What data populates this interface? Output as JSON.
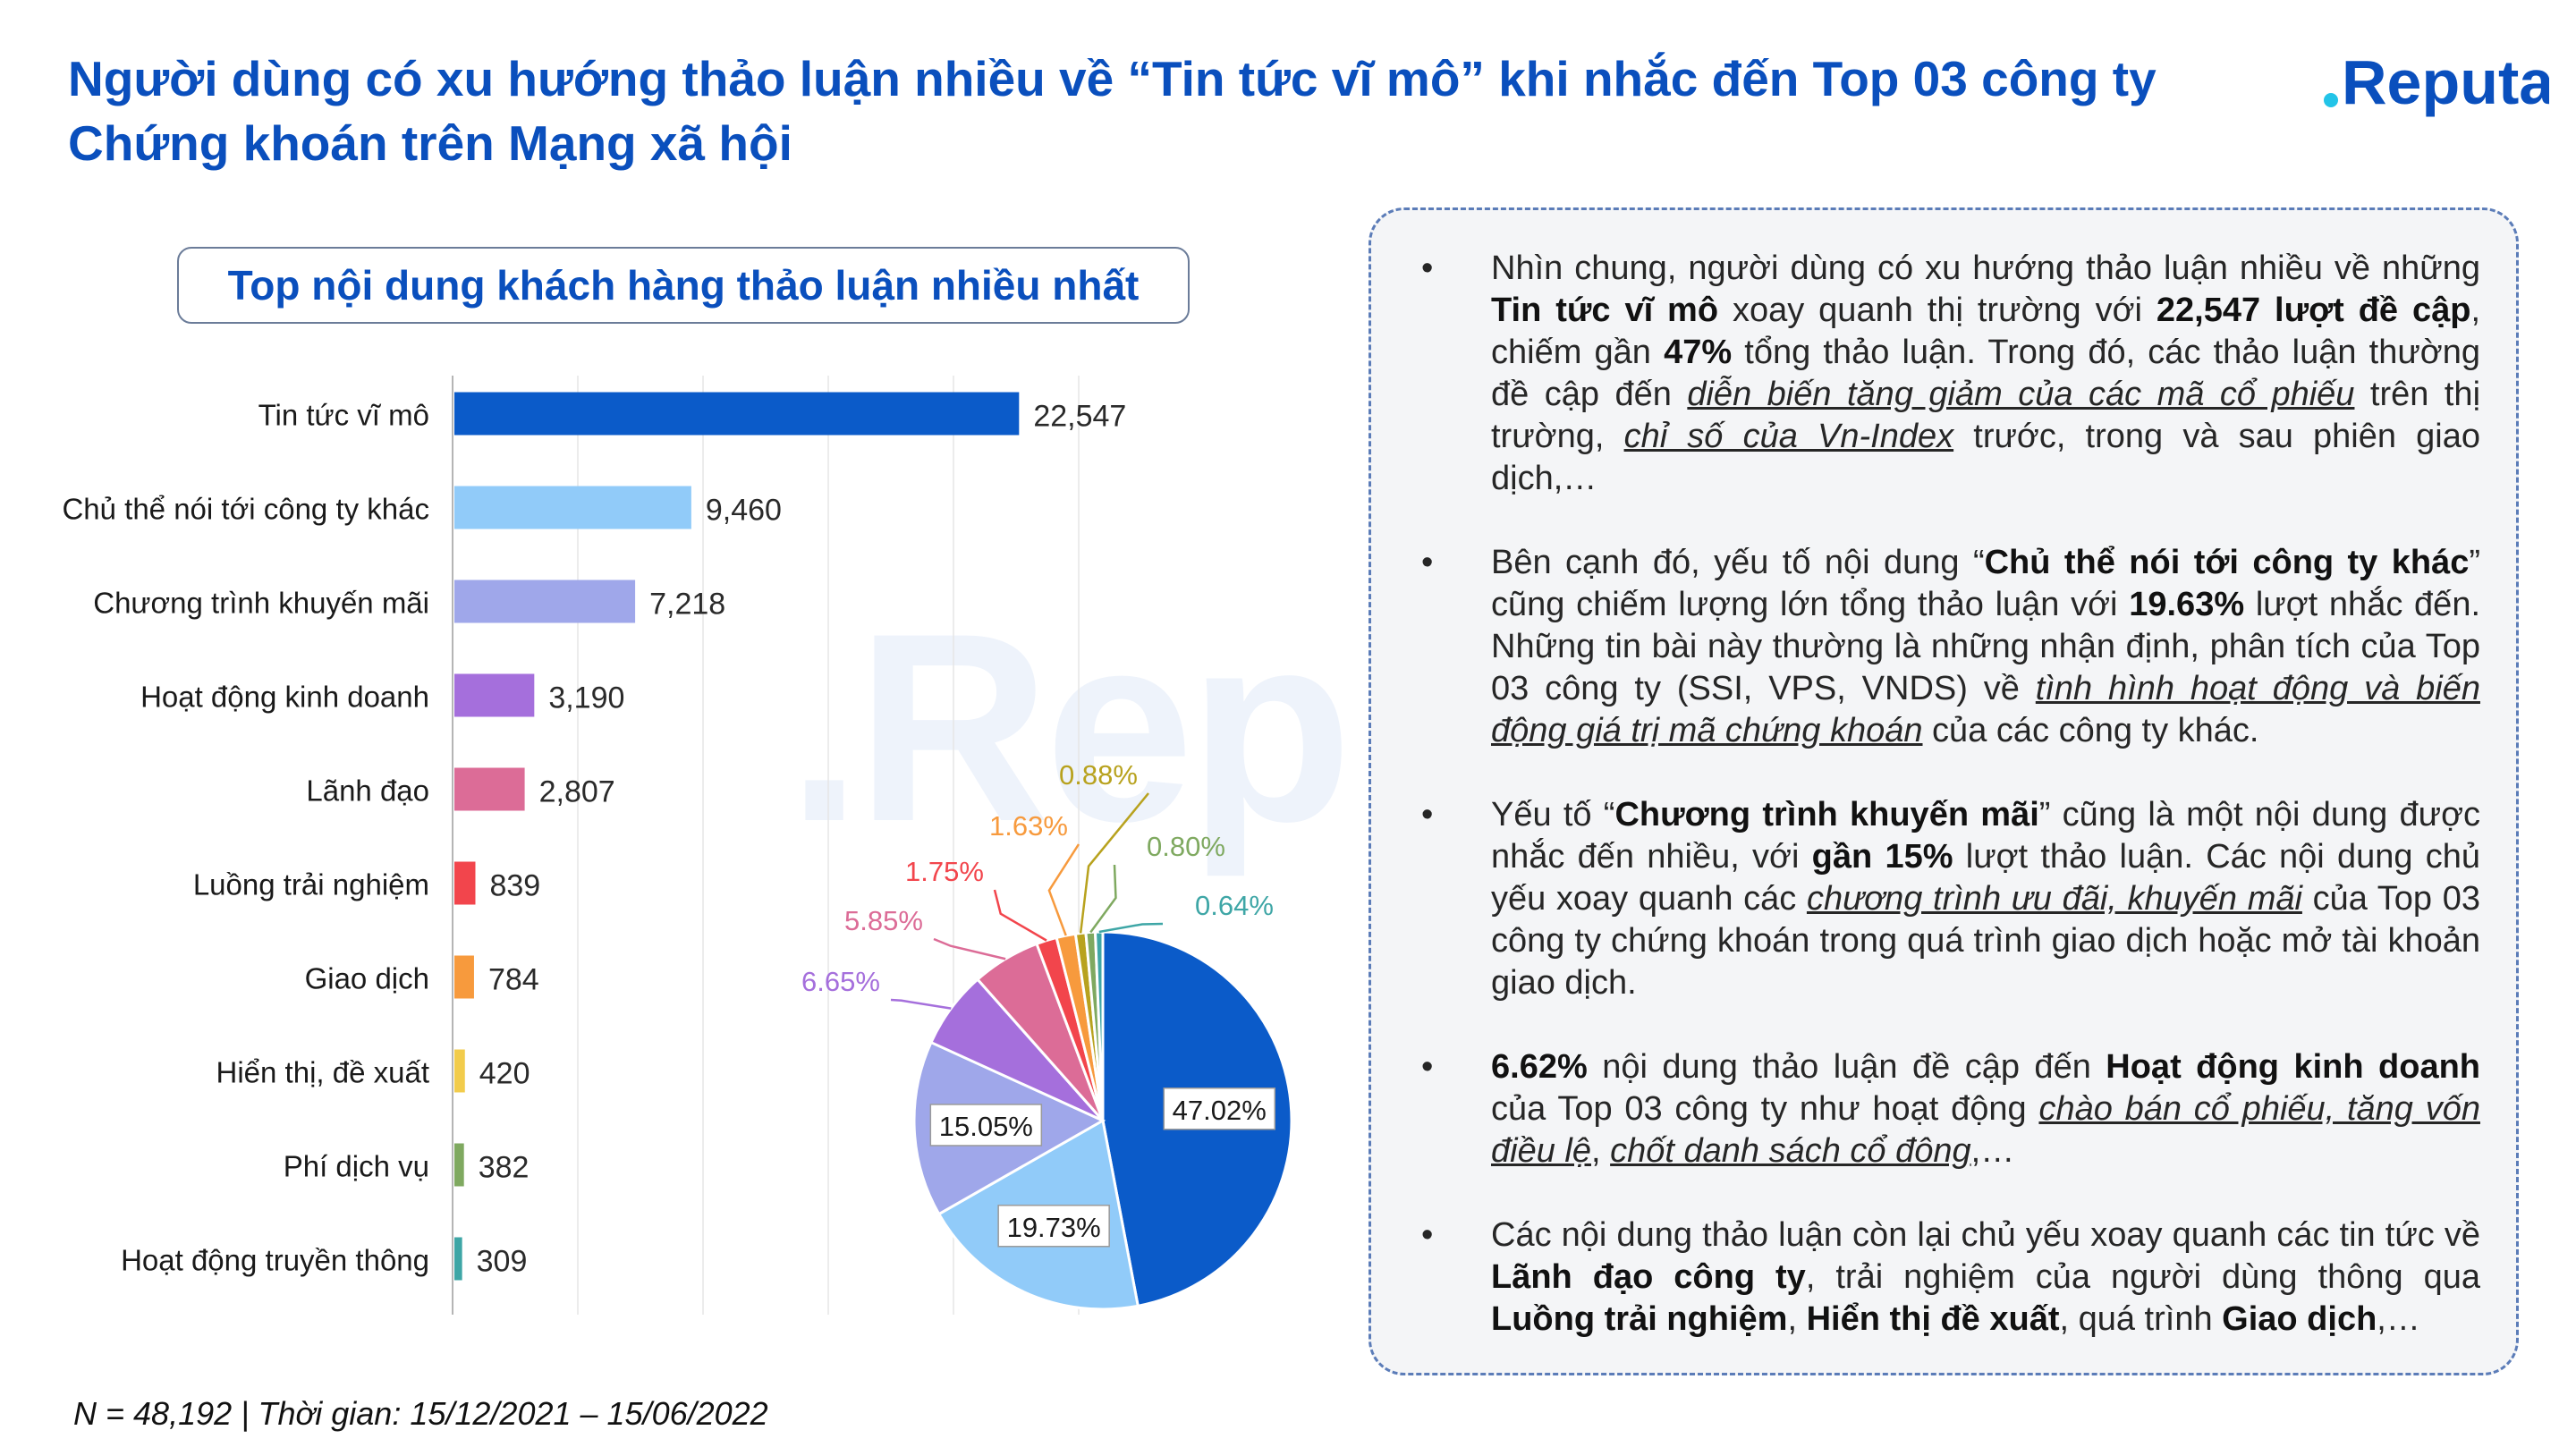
{
  "header": {
    "title": "Người dùng có xu hướng thảo luận nhiều về “Tin tức vĩ mô” khi nhắc đến Top 03 công ty Chứng khoán trên Mạng xã hội",
    "logo_text": "Reputa",
    "brand_color": "#0a4fbd",
    "logo_dot_color": "#22c4e8"
  },
  "watermark": ".Rep",
  "chart_title": "Top nội dung khách hàng thảo luận nhiều nhất",
  "chart_data": [
    {
      "type": "bar",
      "orientation": "horizontal",
      "categories": [
        "Tin tức vĩ mô",
        "Chủ thể nói tới công ty khác",
        "Chương trình khuyến mãi",
        "Hoạt động kinh doanh",
        "Lãnh đạo",
        "Luồng trải nghiệm",
        "Giao dịch",
        "Hiển thị, đề xuất",
        "Phí dịch vụ",
        "Hoạt động truyền thông"
      ],
      "values": [
        22547,
        9460,
        7218,
        3190,
        2807,
        839,
        784,
        420,
        382,
        309
      ],
      "value_labels": [
        "22,547",
        "9,460",
        "7,218",
        "3,190",
        "2,807",
        "839",
        "784",
        "420",
        "382",
        "309"
      ],
      "colors": [
        "#0b5bc9",
        "#91cbf9",
        "#9fa7ea",
        "#a56fdc",
        "#dc6c97",
        "#f2454c",
        "#f79a3d",
        "#f2cc4c",
        "#7fa960",
        "#3ea6a6"
      ],
      "xlim": [
        0,
        25000
      ],
      "grid": true
    },
    {
      "type": "pie",
      "labels": [
        "47.02%",
        "19.73%",
        "15.05%",
        "6.65%",
        "5.85%",
        "1.75%",
        "1.63%",
        "0.88%",
        "0.80%",
        "0.64%"
      ],
      "values": [
        47.02,
        19.73,
        15.05,
        6.65,
        5.85,
        1.75,
        1.63,
        0.88,
        0.8,
        0.64
      ],
      "colors": [
        "#0b5bc9",
        "#91cbf9",
        "#9fa7ea",
        "#a56fdc",
        "#dc6c97",
        "#f2454c",
        "#f79a3d",
        "#b8a21e",
        "#7fa960",
        "#3ea6a6"
      ]
    }
  ],
  "notes": [
    [
      {
        "t": "Nhìn chung, người dùng có xu hướng thảo luận nhiều về những "
      },
      {
        "t": "Tin tức vĩ mô",
        "s": "b"
      },
      {
        "t": " xoay quanh thị trường với "
      },
      {
        "t": "22,547 lượt đề cập",
        "s": "b"
      },
      {
        "t": ", chiếm gần "
      },
      {
        "t": "47%",
        "s": "b"
      },
      {
        "t": " tổng thảo luận. Trong đó, các thảo luận thường đề cập đến "
      },
      {
        "t": "diễn biến tăng giảm của các mã cổ phiếu",
        "s": "u"
      },
      {
        "t": " trên thị trường, "
      },
      {
        "t": "chỉ số của Vn-Index",
        "s": "u"
      },
      {
        "t": " trước, trong và sau phiên giao dịch,…"
      }
    ],
    [
      {
        "t": "Bên cạnh đó, yếu tố nội dung “"
      },
      {
        "t": "Chủ thể nói tới công ty khác",
        "s": "b"
      },
      {
        "t": "” cũng chiếm lượng lớn tổng thảo luận với "
      },
      {
        "t": "19.63%",
        "s": "b"
      },
      {
        "t": " lượt nhắc đến. Những tin bài này thường là những nhận định, phân tích của Top 03 công ty (SSI, VPS, VNDS) về "
      },
      {
        "t": "tình hình hoạt động và biến động giá trị mã chứng khoán",
        "s": "u"
      },
      {
        "t": " của các công ty khác."
      }
    ],
    [
      {
        "t": "Yếu tố “"
      },
      {
        "t": "Chương trình khuyến mãi",
        "s": "b"
      },
      {
        "t": "” cũng là một nội dung được nhắc đến nhiều, với "
      },
      {
        "t": "gần 15%",
        "s": "b"
      },
      {
        "t": " lượt thảo luận. Các nội dung chủ yếu xoay quanh các "
      },
      {
        "t": "chương trình ưu đãi, khuyến mãi",
        "s": "u"
      },
      {
        "t": " của Top 03 công ty chứng khoán trong quá trình giao dịch hoặc mở tài khoản giao dịch."
      }
    ],
    [
      {
        "t": "6.62%",
        "s": "b"
      },
      {
        "t": " nội dung thảo luận đề cập đến "
      },
      {
        "t": "Hoạt động kinh doanh",
        "s": "b"
      },
      {
        "t": " của Top 03 công ty như hoạt động "
      },
      {
        "t": "chào bán cổ phiếu, tăng vốn điều lệ",
        "s": "u"
      },
      {
        "t": ", "
      },
      {
        "t": "chốt danh sách cổ đông",
        "s": "u"
      },
      {
        "t": ",…"
      }
    ],
    [
      {
        "t": "Các nội dung thảo luận còn lại chủ yếu xoay quanh các tin tức về "
      },
      {
        "t": "Lãnh đạo công ty",
        "s": "b"
      },
      {
        "t": ", trải nghiệm của người dùng thông qua "
      },
      {
        "t": "Luồng trải nghiệm",
        "s": "b"
      },
      {
        "t": ", "
      },
      {
        "t": "Hiển thị đề xuất",
        "s": "b"
      },
      {
        "t": ", quá trình "
      },
      {
        "t": "Giao dịch",
        "s": "b"
      },
      {
        "t": ",…"
      }
    ]
  ],
  "footer": "N = 48,192 | Thời gian: 15/12/2021 – 15/06/2022"
}
